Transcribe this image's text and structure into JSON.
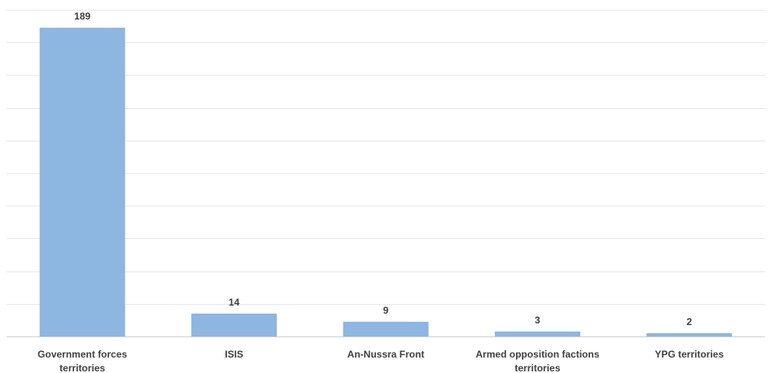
{
  "chart_data": {
    "type": "bar",
    "categories": [
      [
        "Government forces",
        "territories"
      ],
      [
        "ISIS"
      ],
      [
        "An-Nussra Front"
      ],
      [
        "Armed opposition factions",
        "territories"
      ],
      [
        "YPG territories"
      ]
    ],
    "values": [
      189,
      14,
      9,
      3,
      2
    ],
    "data_labels": [
      "189",
      "14",
      "9",
      "3",
      "2"
    ],
    "title": "",
    "xlabel": "",
    "ylabel": "",
    "ylim": [
      0,
      200
    ],
    "grid": true,
    "legend": "none",
    "bar_color": "#8db6e0"
  }
}
